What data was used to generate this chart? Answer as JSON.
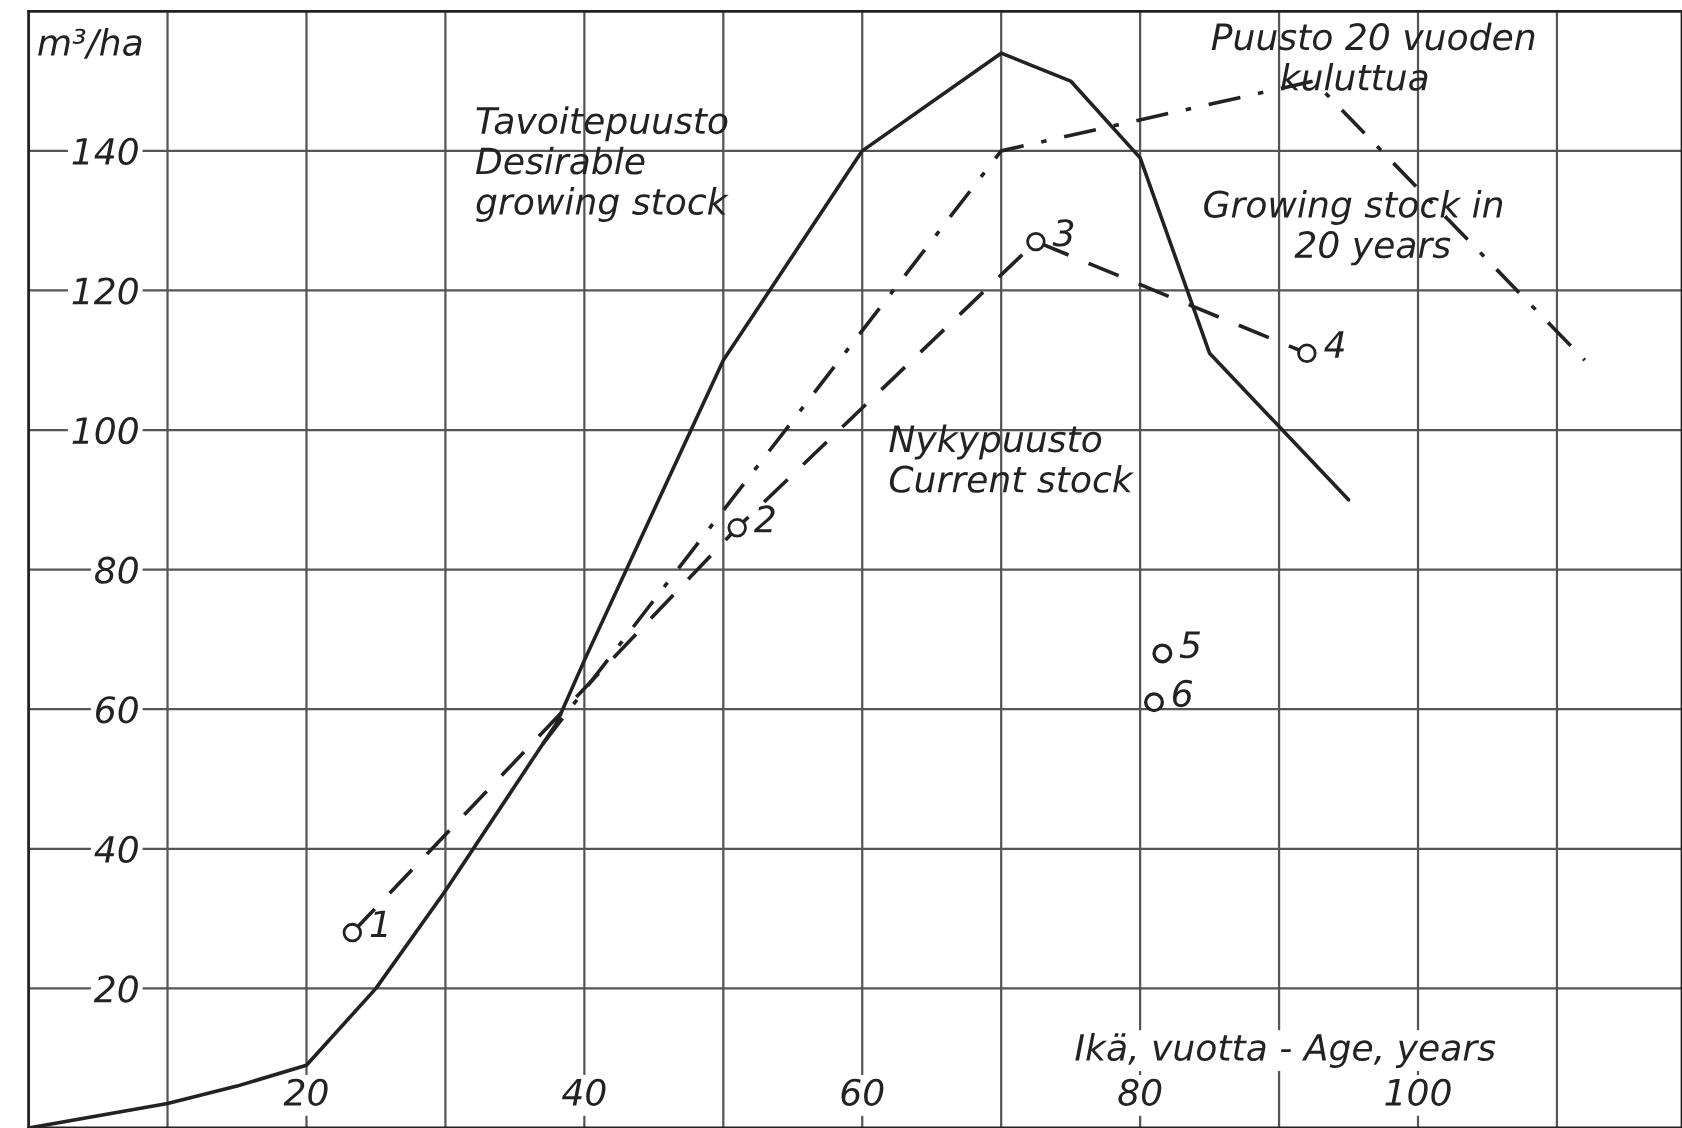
{
  "chart_data": {
    "type": "line",
    "xlabel": "Ikä, vuotta - Age, years",
    "ylabel": "m³/ha",
    "xlim": [
      0,
      119
    ],
    "ylim": [
      0,
      160
    ],
    "xticks": [
      {
        "value": 10,
        "label": null
      },
      20,
      {
        "value": 30,
        "label": null
      },
      40,
      {
        "value": 50,
        "label": null
      },
      60,
      {
        "value": 70,
        "label": null
      },
      80,
      {
        "value": 90,
        "label": null
      },
      100,
      {
        "value": 110,
        "label": null
      }
    ],
    "yticks": [
      20,
      40,
      60,
      80,
      100,
      120,
      140
    ],
    "grid": true,
    "series": [
      {
        "color": "#222222",
        "line_style": "solid",
        "marker": "none",
        "x": [
          0,
          10,
          15,
          20,
          25,
          30,
          35,
          38,
          40,
          50,
          60,
          70,
          75,
          80,
          85,
          95
        ],
        "values": [
          0,
          3.5,
          6,
          9,
          20,
          34,
          49,
          58,
          67,
          110,
          140,
          154,
          150,
          139,
          111,
          90
        ]
      },
      {
        "color": "#222222",
        "line_style": "dashed",
        "marker": "circle",
        "x": [
          23.3,
          51,
          72.5,
          92
        ],
        "values": [
          28,
          86,
          127,
          111
        ]
      },
      {
        "color": "#222222",
        "line_style": "dashdot",
        "marker": "none",
        "x": [
          37,
          70,
          92.5,
          112
        ],
        "values": [
          55,
          140,
          150,
          110
        ]
      },
      {
        "type": "scatter",
        "color": "#222222",
        "marker": "circle",
        "x": [
          81.6,
          81
        ],
        "values": [
          68,
          61
        ]
      }
    ],
    "annotations": [
      "Tavoitepuusto\nDesirable\ngrowing stock",
      "Nykypuusto\nCurrent stock",
      "Puusto 20 vuoden\n      kuluttua",
      "Growing stock in\n        20 years",
      {
        "text": "1",
        "x": 23.3,
        "y": 28
      },
      {
        "text": "2",
        "x": 51,
        "y": 86
      },
      {
        "text": "3",
        "x": 72.5,
        "y": 127
      },
      {
        "text": "4",
        "x": 92,
        "y": 111
      },
      {
        "text": "5",
        "x": 81.6,
        "y": 68
      },
      {
        "text": "6",
        "x": 81,
        "y": 61
      }
    ]
  }
}
